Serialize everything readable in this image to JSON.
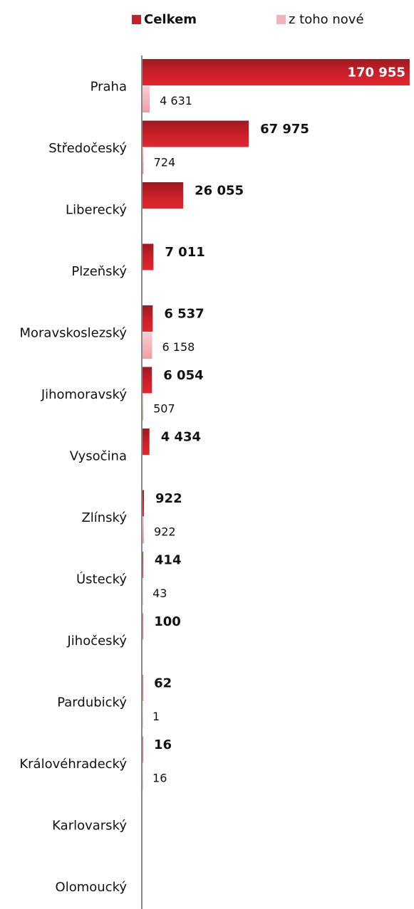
{
  "chart_data": {
    "type": "bar",
    "orientation": "horizontal",
    "categories": [
      "Praha",
      "Středočeský",
      "Liberecký",
      "Plzeňský",
      "Moravskoslezský",
      "Jihomoravský",
      "Vysočina",
      "Zlínský",
      "Ústecký",
      "Jihočeský",
      "Pardubický",
      "Královéhradecký",
      "Karlovarský",
      "Olomoucký"
    ],
    "series": [
      {
        "name": "Celkem",
        "color": "#c8202a",
        "values": [
          170955,
          67975,
          26055,
          7011,
          6537,
          6054,
          4434,
          922,
          414,
          100,
          62,
          16,
          null,
          null
        ],
        "value_labels": [
          "170 955",
          "67 975",
          "26 055",
          "7 011",
          "6 537",
          "6 054",
          "4 434",
          "922",
          "414",
          "100",
          "62",
          "16",
          null,
          null
        ]
      },
      {
        "name": "z toho nové",
        "color": "#f4b3b6",
        "values": [
          4631,
          724,
          null,
          null,
          6158,
          507,
          null,
          922,
          43,
          null,
          1,
          16,
          null,
          null
        ],
        "value_labels": [
          "4 631",
          "724",
          null,
          null,
          "6 158",
          "507",
          null,
          "922",
          "43",
          null,
          "1",
          "16",
          null,
          null
        ]
      }
    ],
    "xlim": [
      0,
      171000
    ]
  }
}
